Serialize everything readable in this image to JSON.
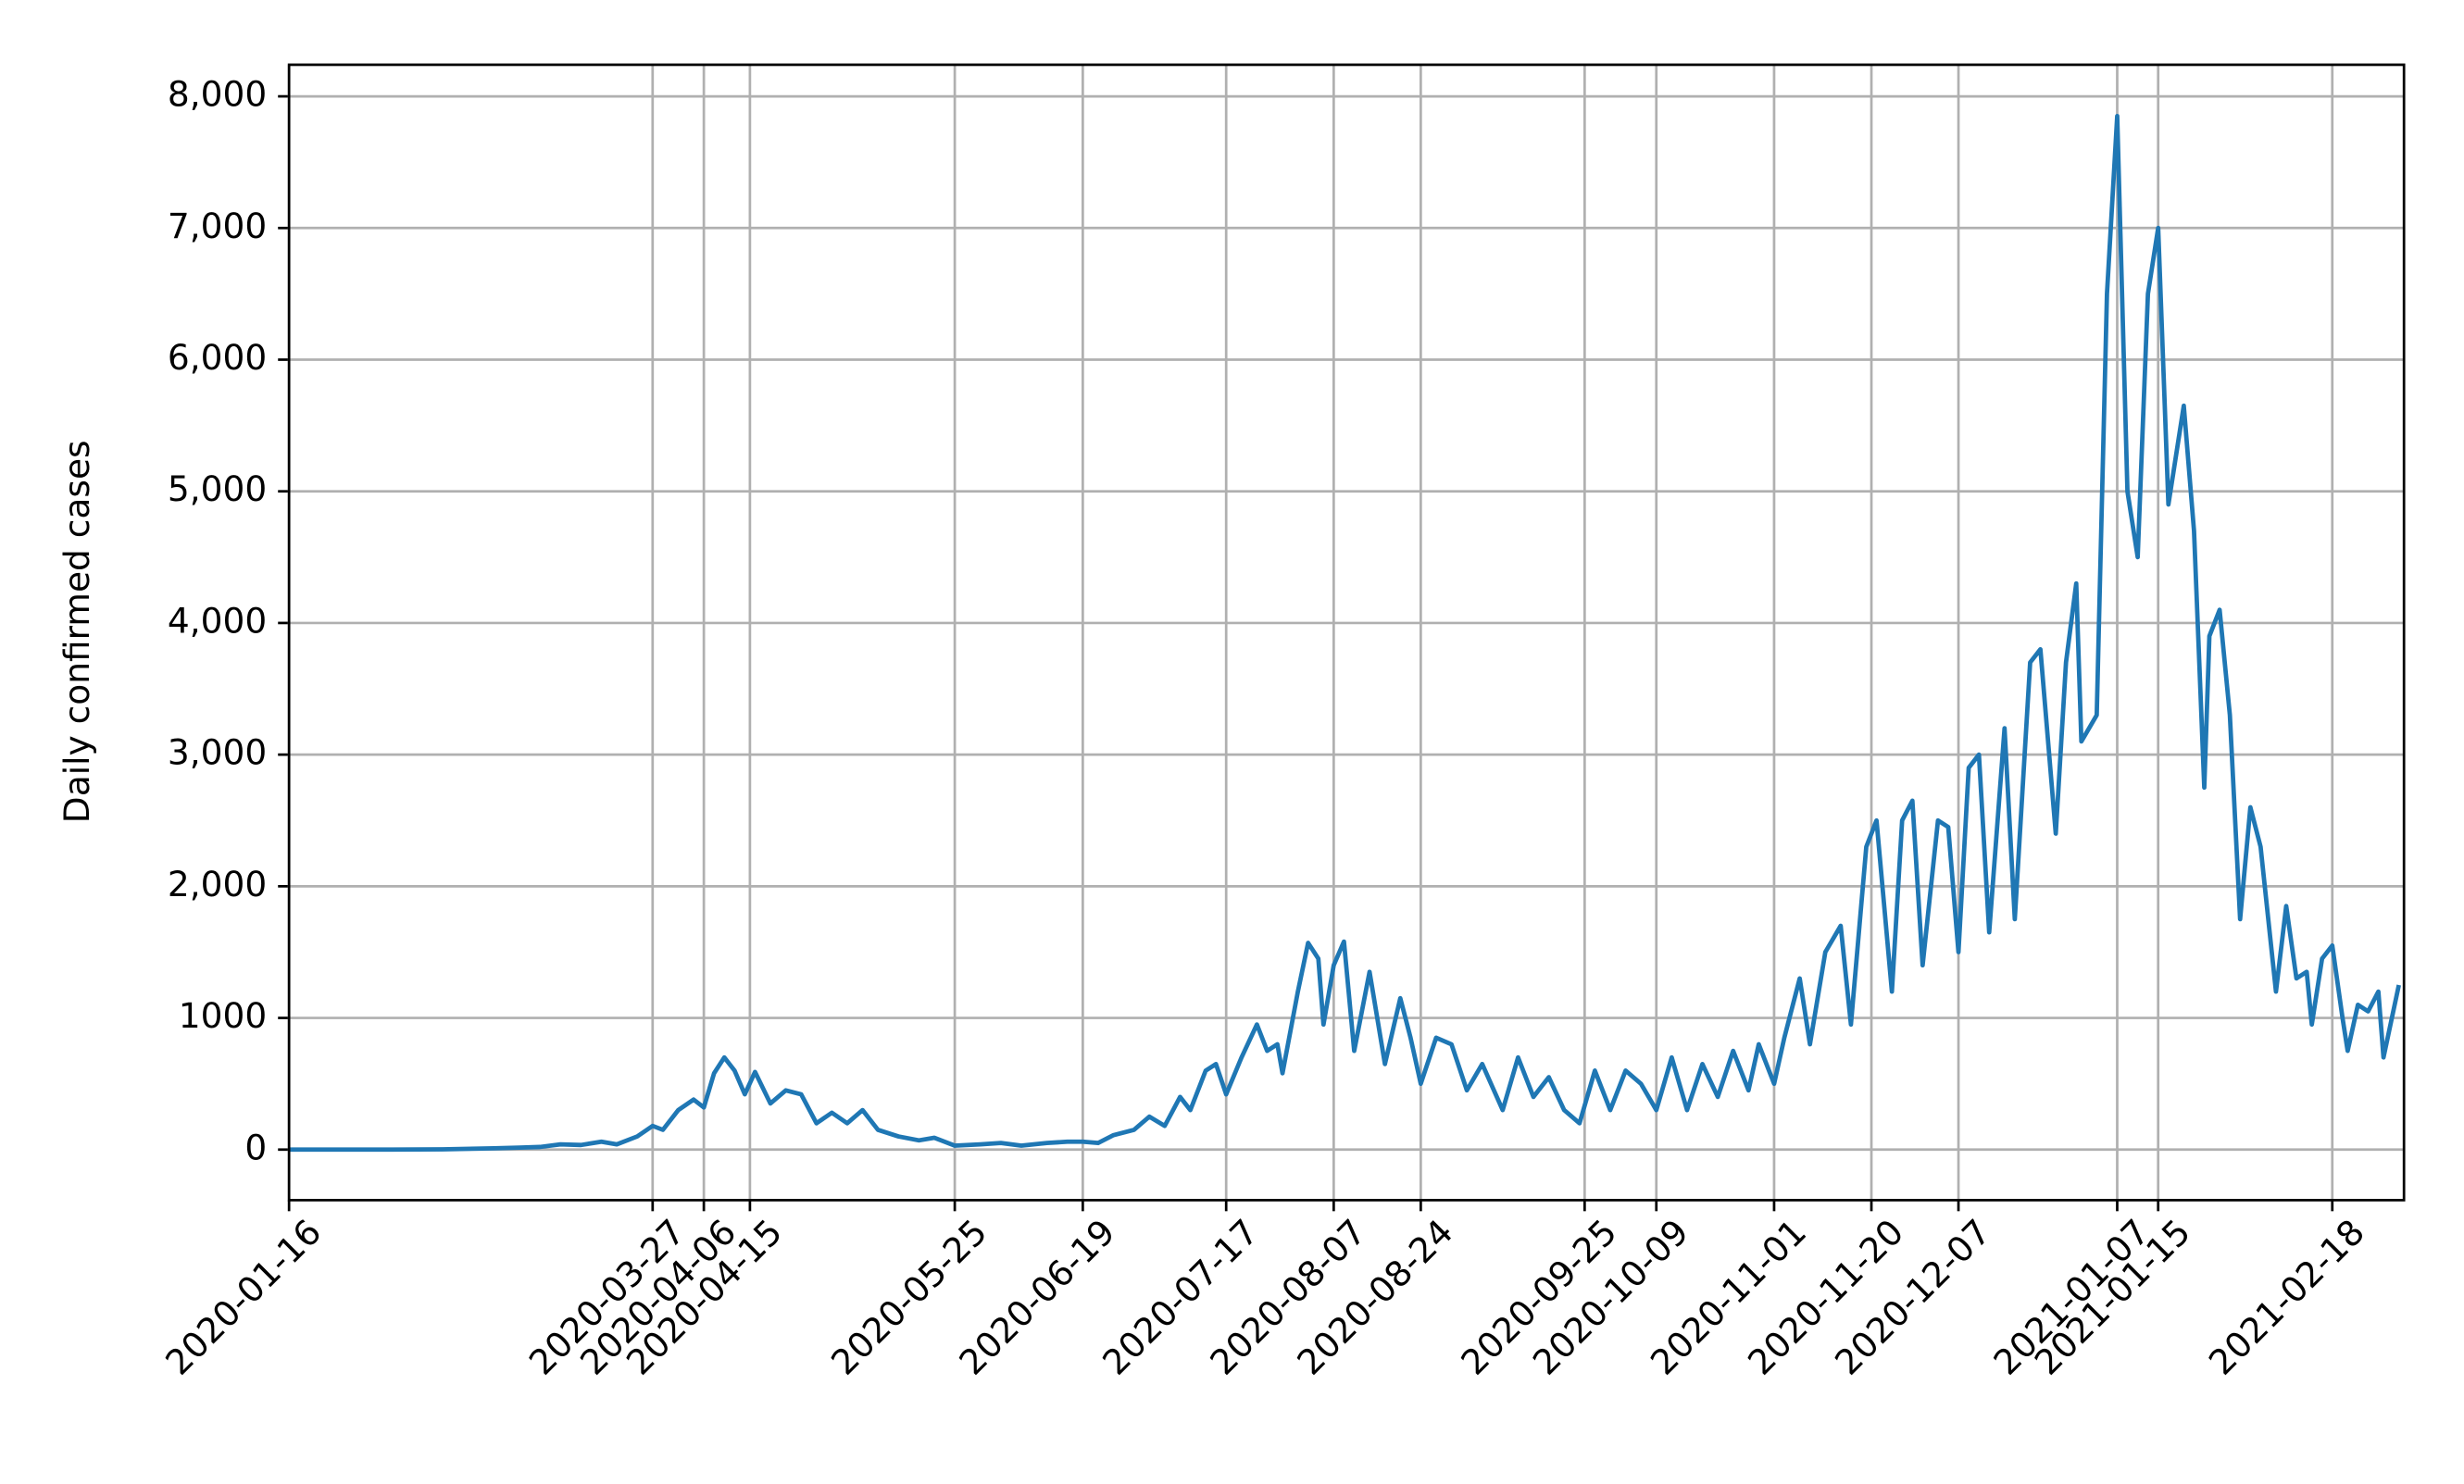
{
  "chart_data": {
    "type": "line",
    "y_label": "Daily confirmed cases",
    "x": [
      "2020-01-16",
      "2020-01-25",
      "2020-02-05",
      "2020-02-15",
      "2020-02-25",
      "2020-03-01",
      "2020-03-05",
      "2020-03-09",
      "2020-03-13",
      "2020-03-17",
      "2020-03-20",
      "2020-03-24",
      "2020-03-27",
      "2020-03-29",
      "2020-04-01",
      "2020-04-04",
      "2020-04-06",
      "2020-04-08",
      "2020-04-10",
      "2020-04-12",
      "2020-04-14",
      "2020-04-16",
      "2020-04-19",
      "2020-04-22",
      "2020-04-25",
      "2020-04-28",
      "2020-05-01",
      "2020-05-04",
      "2020-05-07",
      "2020-05-10",
      "2020-05-14",
      "2020-05-18",
      "2020-05-21",
      "2020-05-25",
      "2020-05-30",
      "2020-06-03",
      "2020-06-07",
      "2020-06-12",
      "2020-06-16",
      "2020-06-19",
      "2020-06-22",
      "2020-06-25",
      "2020-06-29",
      "2020-07-02",
      "2020-07-05",
      "2020-07-08",
      "2020-07-10",
      "2020-07-13",
      "2020-07-15",
      "2020-07-17",
      "2020-07-20",
      "2020-07-23",
      "2020-07-25",
      "2020-07-27",
      "2020-07-28",
      "2020-07-31",
      "2020-08-02",
      "2020-08-04",
      "2020-08-05",
      "2020-08-07",
      "2020-08-09",
      "2020-08-11",
      "2020-08-14",
      "2020-08-17",
      "2020-08-20",
      "2020-08-22",
      "2020-08-24",
      "2020-08-27",
      "2020-08-30",
      "2020-09-02",
      "2020-09-05",
      "2020-09-09",
      "2020-09-12",
      "2020-09-15",
      "2020-09-18",
      "2020-09-21",
      "2020-09-24",
      "2020-09-27",
      "2020-09-30",
      "2020-10-03",
      "2020-10-06",
      "2020-10-09",
      "2020-10-12",
      "2020-10-15",
      "2020-10-18",
      "2020-10-21",
      "2020-10-24",
      "2020-10-27",
      "2020-10-29",
      "2020-11-01",
      "2020-11-03",
      "2020-11-06",
      "2020-11-08",
      "2020-11-11",
      "2020-11-14",
      "2020-11-16",
      "2020-11-19",
      "2020-11-21",
      "2020-11-24",
      "2020-11-26",
      "2020-11-28",
      "2020-11-30",
      "2020-12-03",
      "2020-12-05",
      "2020-12-07",
      "2020-12-09",
      "2020-12-11",
      "2020-12-13",
      "2020-12-16",
      "2020-12-18",
      "2020-12-21",
      "2020-12-23",
      "2020-12-26",
      "2020-12-28",
      "2020-12-30",
      "2020-12-31",
      "2021-01-03",
      "2021-01-05",
      "2021-01-07",
      "2021-01-09",
      "2021-01-11",
      "2021-01-13",
      "2021-01-15",
      "2021-01-17",
      "2021-01-20",
      "2021-01-22",
      "2021-01-24",
      "2021-01-25",
      "2021-01-27",
      "2021-01-29",
      "2021-01-31",
      "2021-02-02",
      "2021-02-04",
      "2021-02-07",
      "2021-02-09",
      "2021-02-11",
      "2021-02-13",
      "2021-02-14",
      "2021-02-16",
      "2021-02-18",
      "2021-02-20",
      "2021-02-21",
      "2021-02-23",
      "2021-02-25",
      "2021-02-27",
      "2021-02-28",
      "2021-03-03"
    ],
    "series": [
      {
        "name": "Daily confirmed cases",
        "color": "#1f77b4",
        "values": [
          0,
          0,
          0,
          2,
          10,
          15,
          20,
          40,
          35,
          60,
          40,
          100,
          180,
          150,
          300,
          380,
          320,
          580,
          700,
          600,
          420,
          590,
          350,
          450,
          420,
          200,
          280,
          200,
          300,
          150,
          100,
          70,
          90,
          30,
          40,
          50,
          30,
          50,
          60,
          60,
          50,
          110,
          150,
          250,
          180,
          400,
          300,
          600,
          650,
          420,
          700,
          950,
          750,
          800,
          580,
          1200,
          1570,
          1450,
          950,
          1400,
          1580,
          750,
          1350,
          650,
          1150,
          850,
          500,
          850,
          800,
          450,
          650,
          300,
          700,
          400,
          550,
          300,
          200,
          600,
          300,
          600,
          500,
          300,
          700,
          300,
          650,
          400,
          750,
          450,
          800,
          500,
          850,
          1300,
          800,
          1500,
          1700,
          950,
          2300,
          2500,
          1200,
          2500,
          2650,
          1400,
          2500,
          2450,
          1500,
          2900,
          3000,
          1650,
          3200,
          1750,
          3700,
          3800,
          2400,
          3700,
          4300,
          3100,
          3300,
          6500,
          7850,
          5000,
          4500,
          6500,
          7000,
          4900,
          5650,
          4700,
          2750,
          3900,
          4100,
          3300,
          1750,
          2600,
          2300,
          1200,
          1850,
          1300,
          1350,
          950,
          1450,
          1550,
          1000,
          750,
          1100,
          1050,
          1200,
          700,
          1250
        ]
      }
    ],
    "xlim": [
      "2020-01-16",
      "2021-03-04"
    ],
    "xticks": [
      "2020-01-16",
      "2020-03-27",
      "2020-04-06",
      "2020-04-15",
      "2020-05-25",
      "2020-06-19",
      "2020-07-17",
      "2020-08-07",
      "2020-08-24",
      "2020-09-25",
      "2020-10-09",
      "2020-11-01",
      "2020-11-20",
      "2020-12-07",
      "2021-01-07",
      "2021-01-15",
      "2021-02-18"
    ],
    "ylim": [
      -384,
      8240
    ],
    "yticks": [
      0,
      1000,
      {
        "value": 2000,
        "label": "2,000"
      },
      {
        "value": 3000,
        "label": "3,000"
      },
      {
        "value": 4000,
        "label": "4,000"
      },
      {
        "value": 5000,
        "label": "5,000"
      },
      {
        "value": 6000,
        "label": "6,000"
      },
      {
        "value": 7000,
        "label": "7,000"
      },
      {
        "value": 8000,
        "label": "8,000"
      }
    ],
    "grid": true
  }
}
